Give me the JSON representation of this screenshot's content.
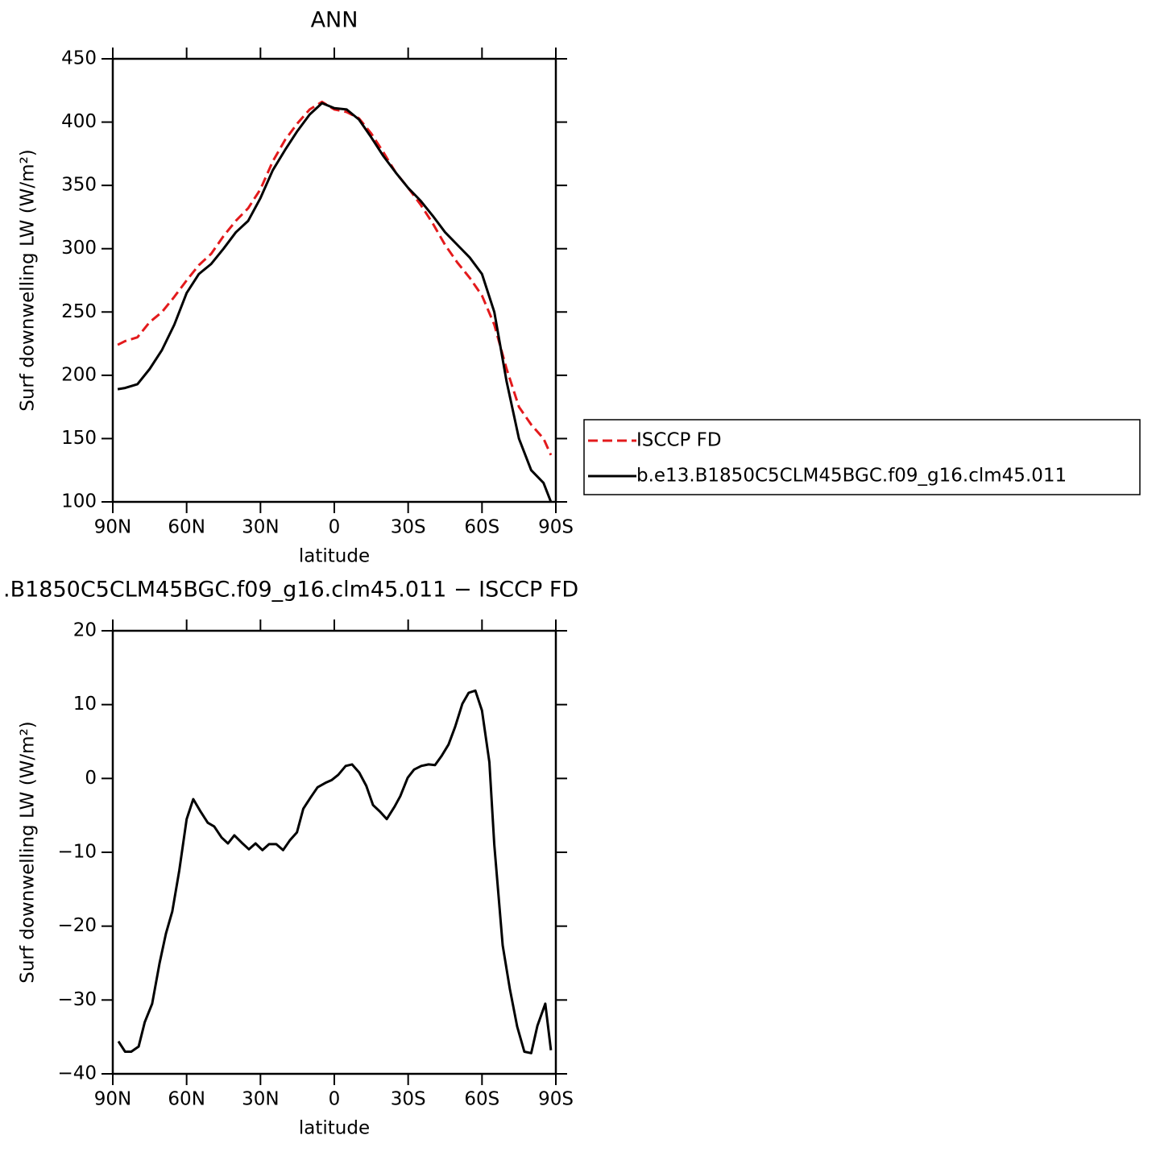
{
  "chart_data": [
    {
      "type": "line",
      "title": "ANN",
      "xlabel": "latitude",
      "ylabel": "Surf downwelling LW (W/m²)",
      "x": [
        88,
        85,
        80,
        75,
        70,
        65,
        60,
        55,
        50,
        45,
        40,
        35,
        30,
        25,
        20,
        15,
        10,
        5,
        0,
        -5,
        -10,
        -15,
        -20,
        -25,
        -30,
        -35,
        -40,
        -45,
        -50,
        -55,
        -60,
        -65,
        -70,
        -75,
        -80,
        -85,
        -88
      ],
      "series": [
        {
          "name": "ISCCP FD",
          "color": "#e31a1c",
          "dashed": true,
          "values": [
            224,
            227,
            230,
            242,
            250,
            262,
            275,
            287,
            296,
            310,
            322,
            332,
            347,
            369,
            386,
            399,
            410,
            416,
            410,
            408,
            403,
            391,
            376,
            360,
            348,
            335,
            320,
            303,
            289,
            277,
            263,
            240,
            205,
            175,
            161,
            150,
            137
          ]
        },
        {
          "name": "b.e13.B1850C5CLM45BGC.f09_g16.clm45.011",
          "color": "#000000",
          "dashed": false,
          "values": [
            189,
            190,
            193,
            205,
            220,
            240,
            265,
            280,
            288,
            300,
            313,
            322,
            340,
            362,
            378,
            393,
            406,
            415,
            411,
            410,
            402,
            388,
            373,
            360,
            348,
            338,
            326,
            313,
            303,
            293,
            280,
            250,
            195,
            150,
            125,
            115,
            100
          ]
        }
      ],
      "xlim": [
        90,
        -90
      ],
      "xticks": [
        {
          "value": 90,
          "label": "90N"
        },
        {
          "value": 60,
          "label": "60N"
        },
        {
          "value": 30,
          "label": "30N"
        },
        0,
        {
          "value": -30,
          "label": "30S"
        },
        {
          "value": -60,
          "label": "60S"
        },
        {
          "value": -90,
          "label": "90S"
        }
      ],
      "ylim": [
        100,
        450
      ],
      "yticks": [
        100,
        150,
        200,
        250,
        300,
        350,
        400,
        450
      ],
      "legend": "right"
    },
    {
      "type": "line",
      "title": ".B1850C5CLM45BGC.f09_g16.clm45.011 − ISCCP FD",
      "xlabel": "latitude",
      "ylabel": "Surf downwelling LW (W/m²)",
      "x": [
        87.7,
        85,
        82.5,
        79.5,
        77,
        74,
        71,
        68.4,
        65.8,
        63,
        60,
        57.3,
        54.3,
        51.4,
        48.8,
        45.8,
        43.2,
        40.6,
        37.6,
        34.7,
        32,
        29.2,
        26.5,
        23.6,
        20.8,
        18.1,
        15.2,
        12.6,
        9.7,
        6.8,
        3.6,
        1,
        -1.6,
        -4.6,
        -7.2,
        -10.1,
        -13,
        -15.7,
        -18.6,
        -21.3,
        -24.5,
        -26.8,
        -29.8,
        -32.4,
        -35.3,
        -38.3,
        -40.9,
        -43.5,
        -46.4,
        -49.1,
        -52,
        -54.6,
        -57.3,
        -60,
        -63,
        -65,
        -68.4,
        -71.3,
        -74.3,
        -77.2,
        -80,
        -82.5,
        -85.7,
        -88
      ],
      "series": [
        {
          "color": "#000000",
          "values": [
            -35.6,
            -37,
            -37,
            -36.3,
            -33,
            -30.5,
            -25,
            -21,
            -18,
            -12.5,
            -5.5,
            -2.8,
            -4.5,
            -6,
            -6.5,
            -8,
            -8.8,
            -7.7,
            -8.7,
            -9.6,
            -8.8,
            -9.7,
            -8.9,
            -8.9,
            -9.7,
            -8.4,
            -7.3,
            -4.1,
            -2.6,
            -1.2,
            -0.6,
            -0.2,
            0.5,
            1.7,
            1.9,
            0.8,
            -1,
            -3.6,
            -4.5,
            -5.5,
            -3.8,
            -2.4,
            0.1,
            1.2,
            1.7,
            1.9,
            1.8,
            3,
            4.6,
            7,
            10.1,
            11.6,
            11.9,
            9.2,
            2.2,
            -9,
            -22.6,
            -28.5,
            -33.6,
            -37,
            -37.2,
            -33.5,
            -30.5,
            -36.8
          ]
        }
      ],
      "xlim": [
        90,
        -90
      ],
      "xticks": [
        {
          "value": 90,
          "label": "90N"
        },
        {
          "value": 60,
          "label": "60N"
        },
        {
          "value": 30,
          "label": "30N"
        },
        0,
        {
          "value": -30,
          "label": "30S"
        },
        {
          "value": -60,
          "label": "60S"
        },
        {
          "value": -90,
          "label": "90S"
        }
      ],
      "ylim": [
        -40,
        20
      ],
      "yticks": [
        {
          "value": -40,
          "label": "−40"
        },
        {
          "value": -30,
          "label": "−30"
        },
        {
          "value": -20,
          "label": "−20"
        },
        {
          "value": -10,
          "label": "−10"
        },
        0,
        10,
        20
      ]
    }
  ]
}
